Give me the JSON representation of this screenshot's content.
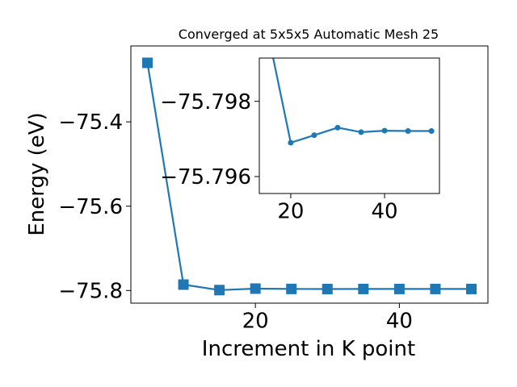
{
  "chart_data": [
    {
      "type": "line",
      "title": "Converged at 5x5x5 Automatic Mesh 25",
      "xlabel": "Increment in K point",
      "ylabel": "Energy (eV)",
      "xlim": [
        2.7,
        52.3
      ],
      "ylim": [
        -75.83,
        -75.22
      ],
      "x_ticks": [
        20,
        40
      ],
      "y_ticks": [
        -75.8,
        -75.6,
        -75.4
      ],
      "x_tick_labels": [
        "20",
        "40"
      ],
      "y_tick_labels": [
        "−75.8",
        "−75.6",
        "−75.4"
      ],
      "marker": "square",
      "color": "#1f77b4",
      "grid": false,
      "series": [
        {
          "x": [
            5,
            10,
            15,
            20,
            25,
            30,
            35,
            40,
            45,
            50
          ],
          "y": [
            -75.26,
            -75.786,
            -75.799,
            -75.7955,
            -75.7963,
            -75.7965,
            -75.7964,
            -75.7964,
            -75.7964,
            -75.7964
          ]
        }
      ]
    },
    {
      "type": "line",
      "title": "",
      "xlabel": "",
      "ylabel": "",
      "xlim": [
        13.3,
        51.7
      ],
      "ylim": [
        -75.79555,
        -75.79915
      ],
      "x_ticks": [
        20,
        40
      ],
      "y_ticks": [
        -75.798,
        -75.796
      ],
      "x_tick_labels": [
        "20",
        "40"
      ],
      "y_tick_labels": [
        "−75.798",
        "−75.796"
      ],
      "marker": "circle",
      "color": "#1f77b4",
      "grid": false,
      "series": [
        {
          "x": [
            15,
            20,
            25,
            30,
            35,
            40,
            45,
            50
          ],
          "y": [
            -75.7999,
            -75.7969,
            -75.7971,
            -75.7973,
            -75.79718,
            -75.79722,
            -75.79721,
            -75.79721
          ]
        }
      ]
    }
  ]
}
